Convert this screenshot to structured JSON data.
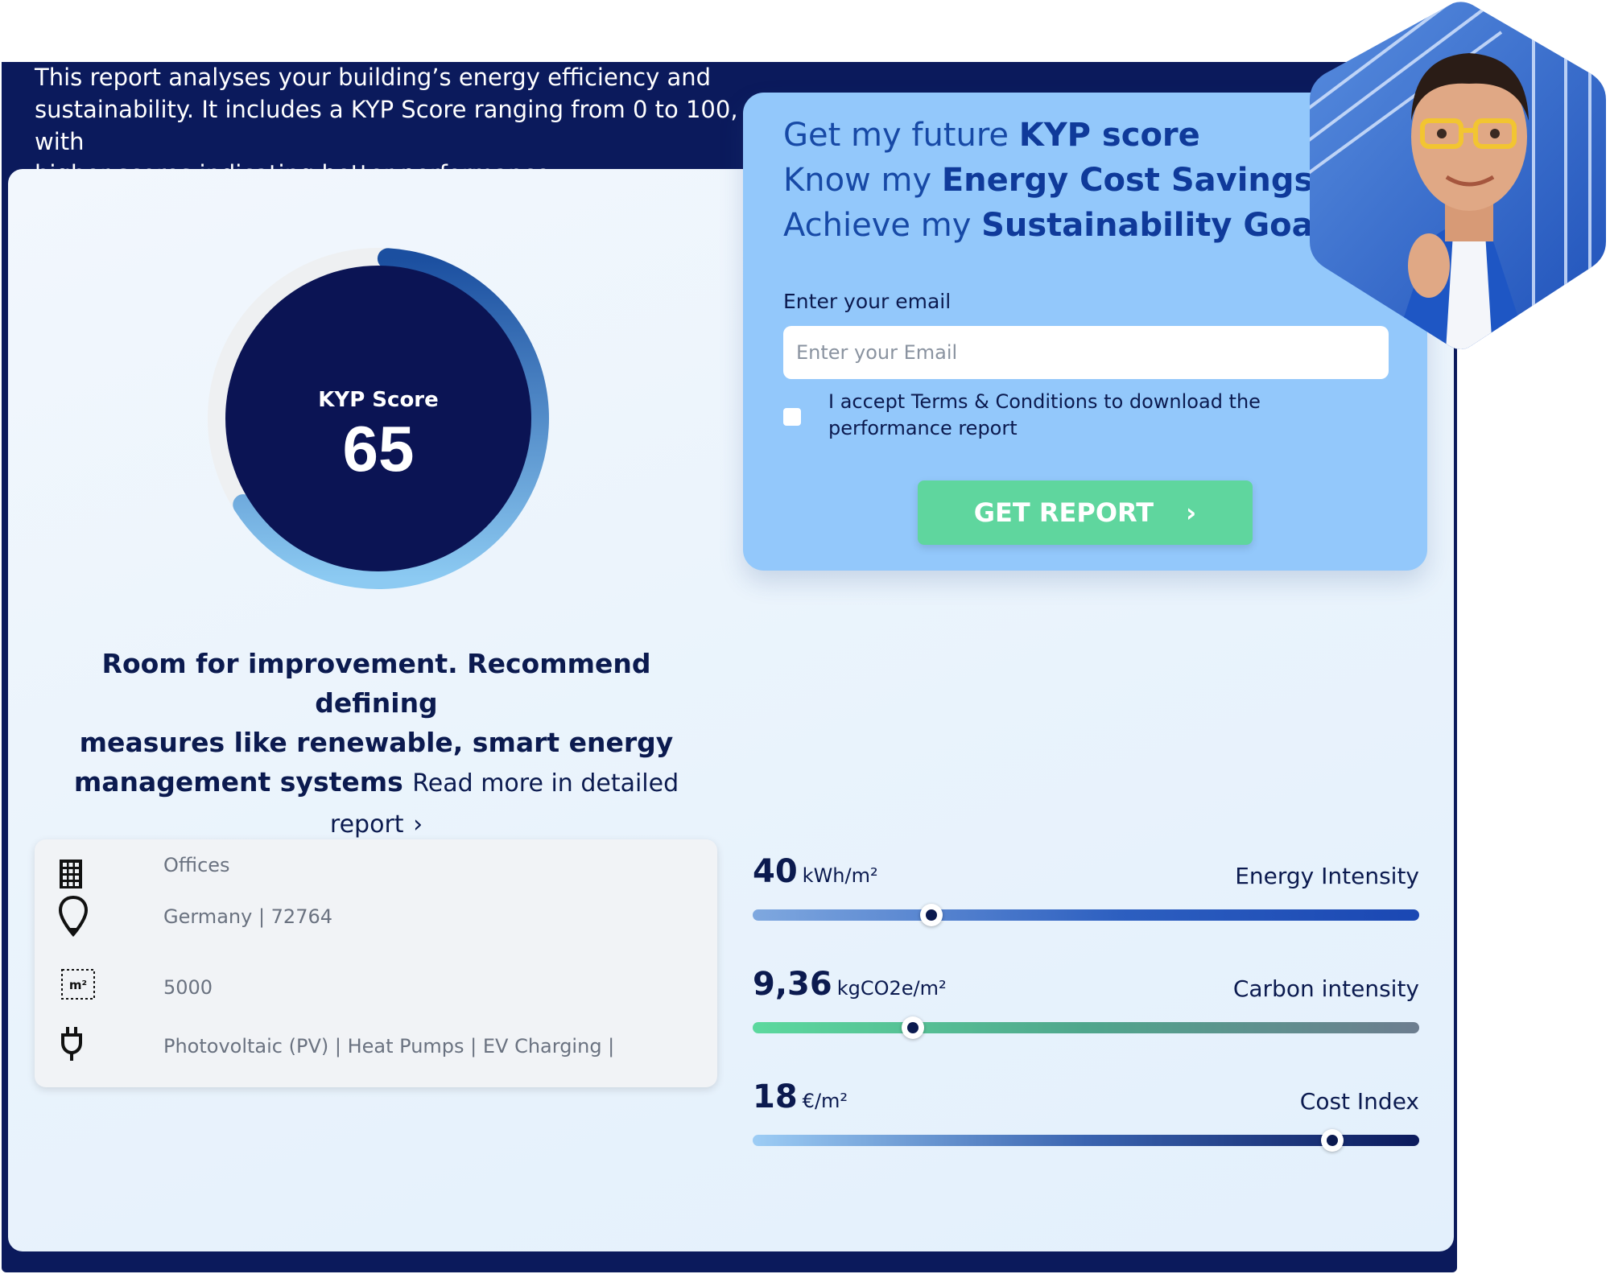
{
  "intro": {
    "line1": "This report analyses your building’s energy efficiency and",
    "line2": "sustainability. It includes a KYP Score ranging from 0 to 100, with",
    "line3": "higher scores indicating better performance."
  },
  "score": {
    "label": "KYP Score",
    "value": "65",
    "progress_fraction": 0.65
  },
  "recommendation": {
    "line1": "Room for improvement. Recommend defining",
    "line2": "measures like renewable, smart energy",
    "line3": "management systems",
    "more_link": "Read more in detailed report",
    "more_arrow": "›"
  },
  "building": {
    "type": "Offices",
    "location": "Germany | 72764",
    "area": "5000",
    "area_icon_text": "m²",
    "tech": "Photovoltaic (PV) | Heat Pumps | EV Charging |"
  },
  "metrics": [
    {
      "value": "40",
      "unit": "kWh/m²",
      "label": "Energy Intensity",
      "slider_fraction": 0.268
    },
    {
      "value": "9,36",
      "unit": "kgCO2e/m²",
      "label": "Carbon intensity",
      "slider_fraction": 0.24
    },
    {
      "value": "18",
      "unit": "€/m²",
      "label": "Cost Index",
      "slider_fraction": 0.869
    }
  ],
  "cta": {
    "line1_pre": "Get my future ",
    "line1_bold": "KYP score",
    "line2_pre": "Know my ",
    "line2_bold": "Energy Cost Savings",
    "line3_pre": "Achieve my ",
    "line3_bold": "Sustainability Goals",
    "email_label": "Enter your email",
    "email_placeholder": "Enter your Email",
    "email_value": "",
    "terms_text": "I accept Terms & Conditions to download the performance report",
    "terms_checked": false,
    "button_label": "GET REPORT",
    "button_arrow": "›"
  },
  "colors": {
    "navy": "#0b1a5c",
    "cta_bg": "#93c8fb",
    "button_green": "#5fd69e",
    "ring_light": "#8ccaf2",
    "ring_dark": "#1b4fa0"
  },
  "icons": [
    "building-icon",
    "location-pin-icon",
    "area-m2-icon",
    "plug-icon"
  ]
}
